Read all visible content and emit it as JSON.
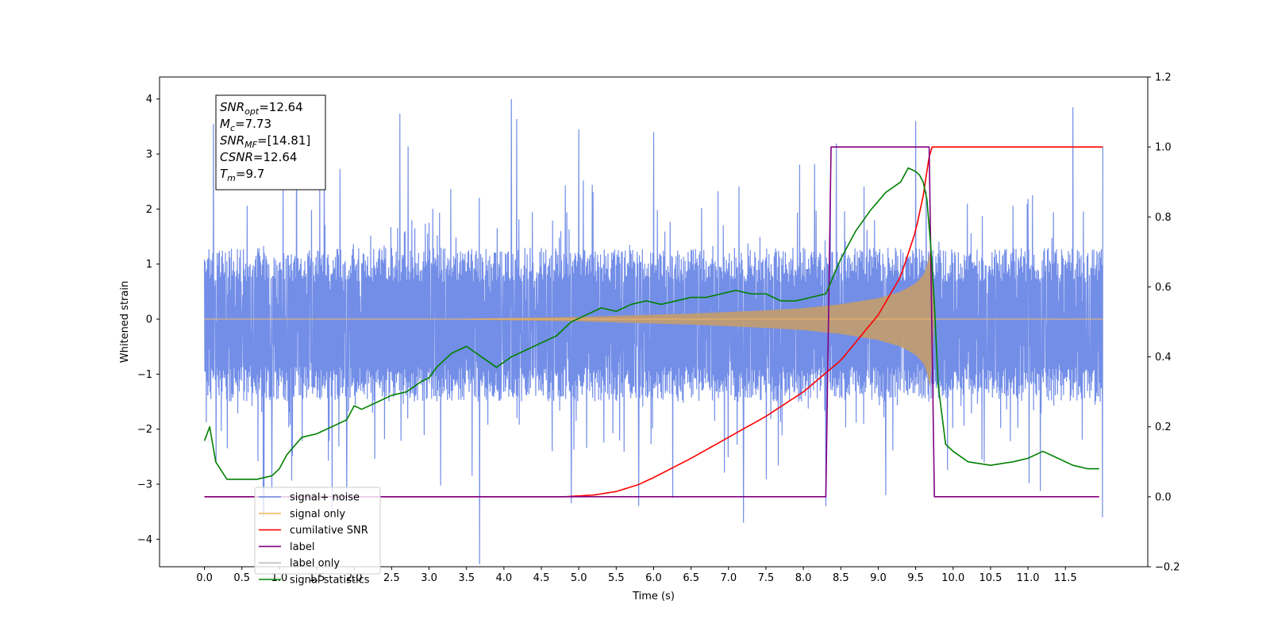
{
  "chart_data": {
    "type": "line",
    "title": "",
    "xlabel": "Time (s)",
    "ylabel": "Whitened strain",
    "ylabel_right": "",
    "xlim": [
      -0.6,
      12.6
    ],
    "ylim": [
      -4.5,
      4.4
    ],
    "ylim_right": [
      -0.2,
      1.2
    ],
    "x_ticks": [
      0.0,
      0.5,
      1.0,
      1.5,
      2.0,
      2.5,
      3.0,
      3.5,
      4.0,
      4.5,
      5.0,
      5.5,
      6.0,
      6.5,
      7.0,
      7.5,
      8.0,
      8.5,
      9.0,
      9.5,
      10.0,
      10.5,
      11.0,
      11.5
    ],
    "x_tick_labels": [
      "0.0",
      "0.5",
      "1.0",
      "1.5",
      "2.0",
      "2.5",
      "3.0",
      "3.5",
      "4.0",
      "4.5",
      "5.0",
      "5.5",
      "6.0",
      "6.5",
      "7.0",
      "7.5",
      "8.0",
      "8.5",
      "9.0",
      "9.5",
      "10.0",
      "10.5",
      "11.0",
      "11.5"
    ],
    "y_ticks_left": [
      -4,
      -3,
      -2,
      -1,
      0,
      1,
      2,
      3,
      4
    ],
    "y_tick_labels_left": [
      "−4",
      "−3",
      "−2",
      "−1",
      "0",
      "1",
      "2",
      "3",
      "4"
    ],
    "y_ticks_right": [
      -0.2,
      0.0,
      0.2,
      0.4,
      0.6,
      0.8,
      1.0,
      1.2
    ],
    "y_tick_labels_right": [
      "−0.2",
      "0.0",
      "0.2",
      "0.4",
      "0.6",
      "0.8",
      "1.0",
      "1.2"
    ],
    "grid": false,
    "legend_position": "lower-left",
    "series": [
      {
        "name": "signal+ noise",
        "axis": "left",
        "color": "#6b88e6",
        "kind": "noise-band",
        "x_range": [
          0.0,
          12.0
        ],
        "typical_range": [
          -1.5,
          1.3
        ],
        "peaks_up": [
          [
            0.12,
            3.55
          ],
          [
            1.23,
            3.9
          ],
          [
            4.1,
            4.0
          ],
          [
            5.0,
            3.45
          ],
          [
            6.0,
            3.4
          ],
          [
            9.5,
            3.6
          ],
          [
            11.6,
            3.85
          ]
        ],
        "peaks_down": [
          [
            0.9,
            -3.1
          ],
          [
            1.9,
            -3.3
          ],
          [
            4.9,
            -3.35
          ],
          [
            5.8,
            -3.4
          ],
          [
            7.2,
            -3.7
          ],
          [
            8.3,
            -3.4
          ],
          [
            9.1,
            -3.2
          ]
        ]
      },
      {
        "name": "signal only",
        "axis": "left",
        "color": "#c59e6e",
        "kind": "chirp-envelope",
        "x": [
          0.0,
          3.0,
          5.0,
          5.5,
          6.0,
          6.5,
          7.0,
          7.5,
          8.0,
          8.5,
          9.0,
          9.3,
          9.5,
          9.6,
          9.65,
          9.7,
          9.75,
          12.0
        ],
        "amplitude": [
          0.0,
          0.0,
          0.04,
          0.06,
          0.08,
          0.1,
          0.13,
          0.16,
          0.2,
          0.27,
          0.38,
          0.5,
          0.65,
          0.8,
          0.95,
          1.3,
          0.0,
          0.0
        ]
      },
      {
        "name": "cumilative SNR",
        "axis": "right",
        "color": "#ff0000",
        "x": [
          0.0,
          4.8,
          5.2,
          5.5,
          5.8,
          6.0,
          6.5,
          7.0,
          7.5,
          8.0,
          8.5,
          9.0,
          9.3,
          9.5,
          9.6,
          9.7,
          12.0
        ],
        "values": [
          0.0,
          0.0,
          0.005,
          0.015,
          0.035,
          0.055,
          0.11,
          0.17,
          0.23,
          0.3,
          0.39,
          0.52,
          0.63,
          0.76,
          0.86,
          1.0,
          1.0
        ]
      },
      {
        "name": "label",
        "axis": "right",
        "color": "#800080",
        "x": [
          0.0,
          8.3,
          8.37,
          9.68,
          9.75,
          11.95
        ],
        "values": [
          0.0,
          0.0,
          1.0,
          1.0,
          0.0,
          0.0
        ]
      },
      {
        "name": "label only",
        "axis": "right",
        "color": "#bfbfbf",
        "hidden_behind_legend": true,
        "x": [],
        "values": []
      },
      {
        "name": "signal statistics",
        "axis": "right",
        "color": "#008000",
        "x": [
          0.0,
          0.07,
          0.15,
          0.3,
          0.5,
          0.7,
          0.9,
          1.0,
          1.1,
          1.3,
          1.5,
          1.7,
          1.9,
          2.0,
          2.1,
          2.3,
          2.5,
          2.7,
          2.9,
          3.0,
          3.1,
          3.3,
          3.5,
          3.7,
          3.9,
          4.1,
          4.3,
          4.5,
          4.7,
          4.9,
          5.1,
          5.3,
          5.5,
          5.7,
          5.9,
          6.1,
          6.3,
          6.5,
          6.7,
          6.9,
          7.1,
          7.3,
          7.5,
          7.7,
          7.9,
          8.1,
          8.3,
          8.5,
          8.7,
          8.9,
          9.1,
          9.3,
          9.4,
          9.5,
          9.55,
          9.6,
          9.65,
          9.7,
          9.75,
          9.8,
          9.9,
          10.0,
          10.2,
          10.5,
          10.8,
          11.0,
          11.2,
          11.4,
          11.6,
          11.8,
          11.95
        ],
        "values": [
          0.16,
          0.2,
          0.1,
          0.05,
          0.05,
          0.05,
          0.06,
          0.08,
          0.12,
          0.17,
          0.18,
          0.2,
          0.22,
          0.26,
          0.25,
          0.27,
          0.29,
          0.3,
          0.33,
          0.34,
          0.37,
          0.41,
          0.43,
          0.4,
          0.37,
          0.4,
          0.42,
          0.44,
          0.46,
          0.5,
          0.52,
          0.54,
          0.53,
          0.55,
          0.56,
          0.55,
          0.56,
          0.57,
          0.57,
          0.58,
          0.59,
          0.58,
          0.58,
          0.56,
          0.56,
          0.57,
          0.58,
          0.68,
          0.76,
          0.82,
          0.87,
          0.9,
          0.94,
          0.93,
          0.92,
          0.9,
          0.85,
          0.72,
          0.55,
          0.32,
          0.15,
          0.13,
          0.1,
          0.09,
          0.1,
          0.11,
          0.13,
          0.11,
          0.09,
          0.08,
          0.08
        ]
      }
    ],
    "annotation_box": {
      "lines": [
        {
          "main": "SNR",
          "sub": "opt",
          "rest": "=12.64"
        },
        {
          "main": "M",
          "sub": "c",
          "rest": "=7.73"
        },
        {
          "main": "SNR",
          "sub": "MF",
          "rest": "=[14.81]"
        },
        {
          "main": "CSNR",
          "sub": "",
          "rest": "=12.64"
        },
        {
          "main": "T",
          "sub": "m",
          "rest": "=9.7"
        }
      ]
    }
  }
}
